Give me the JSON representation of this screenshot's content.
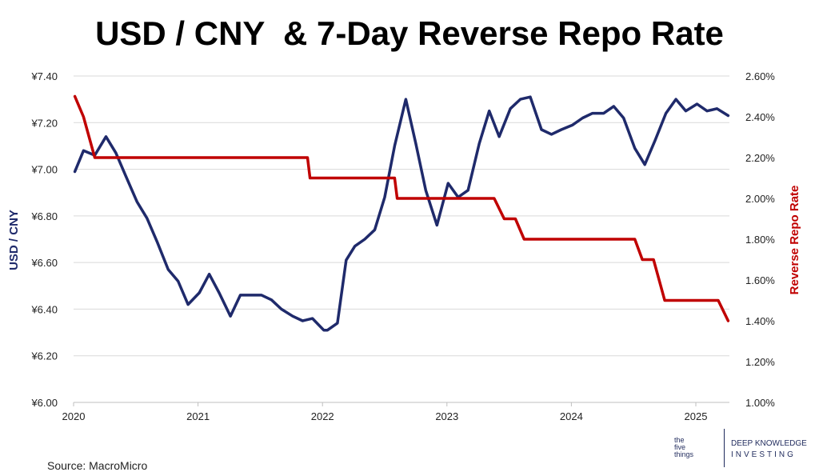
{
  "title": "USD / CNY  & 7-Day Reverse Repo Rate",
  "source": "Source: MacroMicro",
  "logo": {
    "small": [
      "the",
      "five",
      "things"
    ],
    "line1": "DEEP KNOWLEDGE",
    "line2": "INVESTING"
  },
  "colors": {
    "usdcny": "#1f2a6b",
    "repo": "#c00000",
    "grid": "#d9d9d9"
  },
  "chart_data": {
    "type": "line",
    "title": "USD / CNY  & 7-Day Reverse Repo Rate",
    "xlabel": "",
    "xlim": [
      2020.0,
      2025.27
    ],
    "x_ticks": [
      2020,
      2021,
      2022,
      2023,
      2024,
      2025
    ],
    "left_axis": {
      "label": "USD / CNY",
      "ylim": [
        6.0,
        7.4
      ],
      "tick_labels": [
        "¥6.00",
        "¥6.20",
        "¥6.40",
        "¥6.60",
        "¥6.80",
        "¥7.00",
        "¥7.20",
        "¥7.40"
      ],
      "tick_values": [
        6.0,
        6.2,
        6.4,
        6.6,
        6.8,
        7.0,
        7.2,
        7.4
      ]
    },
    "right_axis": {
      "label": "Reverse Repo Rate",
      "ylim": [
        1.0,
        2.6
      ],
      "tick_labels": [
        "1.00%",
        "1.20%",
        "1.40%",
        "1.60%",
        "1.80%",
        "2.00%",
        "2.20%",
        "2.40%",
        "2.60%"
      ],
      "tick_values": [
        1.0,
        1.2,
        1.4,
        1.6,
        1.8,
        2.0,
        2.2,
        2.4,
        2.6
      ]
    },
    "grid": true,
    "series": [
      {
        "name": "USD / CNY",
        "axis": "left",
        "x": [
          2020.01,
          2020.08,
          2020.17,
          2020.26,
          2020.34,
          2020.42,
          2020.51,
          2020.59,
          2020.67,
          2020.76,
          2020.84,
          2020.92,
          2021.01,
          2021.09,
          2021.17,
          2021.26,
          2021.34,
          2021.42,
          2021.51,
          2021.59,
          2021.67,
          2021.76,
          2021.84,
          2021.92,
          2022.01,
          2022.04,
          2022.12,
          2022.19,
          2022.26,
          2022.34,
          2022.42,
          2022.5,
          2022.58,
          2022.67,
          2022.75,
          2022.83,
          2022.92,
          2023.01,
          2023.09,
          2023.17,
          2023.26,
          2023.34,
          2023.42,
          2023.51,
          2023.59,
          2023.67,
          2023.76,
          2023.84,
          2023.92,
          2024.01,
          2024.09,
          2024.17,
          2024.26,
          2024.34,
          2024.42,
          2024.51,
          2024.59,
          2024.67,
          2024.76,
          2024.84,
          2024.92,
          2025.01,
          2025.09,
          2025.17,
          2025.26
        ],
        "y": [
          6.99,
          7.08,
          7.06,
          7.14,
          7.07,
          6.97,
          6.86,
          6.79,
          6.69,
          6.57,
          6.52,
          6.42,
          6.47,
          6.55,
          6.47,
          6.37,
          6.46,
          6.46,
          6.46,
          6.44,
          6.4,
          6.37,
          6.35,
          6.36,
          6.31,
          6.31,
          6.34,
          6.61,
          6.67,
          6.7,
          6.74,
          6.88,
          7.1,
          7.3,
          7.11,
          6.91,
          6.76,
          6.94,
          6.88,
          6.91,
          7.11,
          7.25,
          7.14,
          7.26,
          7.3,
          7.31,
          7.17,
          7.15,
          7.17,
          7.19,
          7.22,
          7.24,
          7.24,
          7.27,
          7.22,
          7.09,
          7.02,
          7.12,
          7.24,
          7.3,
          7.25,
          7.28,
          7.25,
          7.26,
          7.23
        ]
      },
      {
        "name": "Reverse Repo Rate",
        "axis": "right",
        "x": [
          2020.01,
          2020.08,
          2020.17,
          2020.19,
          2021.88,
          2021.9,
          2022.58,
          2022.6,
          2023.38,
          2023.46,
          2023.55,
          2023.62,
          2024.51,
          2024.57,
          2024.66,
          2024.75,
          2025.18,
          2025.26
        ],
        "y": [
          2.5,
          2.4,
          2.2,
          2.2,
          2.2,
          2.1,
          2.1,
          2.0,
          2.0,
          1.9,
          1.9,
          1.8,
          1.8,
          1.7,
          1.7,
          1.5,
          1.5,
          1.4
        ]
      }
    ]
  }
}
